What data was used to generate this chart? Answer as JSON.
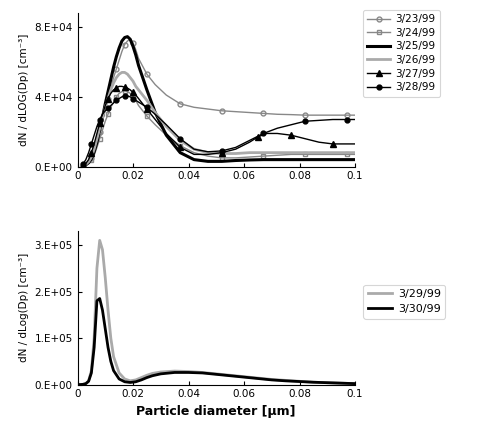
{
  "top_panel": {
    "ylabel": "dN / dLOG(Dp) [cm⁻³]",
    "ylim": [
      0,
      88000
    ],
    "yticks": [
      0,
      40000,
      80000
    ],
    "ytick_labels": [
      "0.E+00",
      "4.E+04",
      "8.E+04"
    ],
    "xlim": [
      0,
      0.1
    ],
    "xticks": [
      0,
      0.02,
      0.04,
      0.06,
      0.08,
      0.1
    ],
    "series": [
      {
        "label": "3/23/99",
        "color": "#888888",
        "lw": 1.0,
        "marker": "o",
        "marker_size": 3.5,
        "fillstyle": "none",
        "x": [
          0.002,
          0.003,
          0.004,
          0.005,
          0.006,
          0.007,
          0.008,
          0.009,
          0.01,
          0.011,
          0.012,
          0.013,
          0.014,
          0.015,
          0.016,
          0.017,
          0.018,
          0.019,
          0.02,
          0.021,
          0.022,
          0.025,
          0.028,
          0.032,
          0.037,
          0.042,
          0.047,
          0.052,
          0.057,
          0.062,
          0.067,
          0.072,
          0.077,
          0.082,
          0.087,
          0.092,
          0.097,
          0.1
        ],
        "y": [
          500,
          1200,
          2500,
          5000,
          9000,
          14000,
          20000,
          26000,
          33000,
          39000,
          45000,
          51000,
          56000,
          61000,
          66000,
          70000,
          72000,
          73000,
          71000,
          67000,
          62000,
          53000,
          47000,
          41000,
          36000,
          34000,
          33000,
          32000,
          31500,
          31000,
          30500,
          30000,
          29800,
          29500,
          29500,
          29500,
          29500,
          29500
        ]
      },
      {
        "label": "3/24/99",
        "color": "#888888",
        "lw": 1.0,
        "marker": "s",
        "marker_size": 3.5,
        "fillstyle": "none",
        "x": [
          0.002,
          0.003,
          0.004,
          0.005,
          0.006,
          0.007,
          0.008,
          0.009,
          0.01,
          0.011,
          0.012,
          0.013,
          0.014,
          0.015,
          0.016,
          0.017,
          0.018,
          0.019,
          0.02,
          0.021,
          0.022,
          0.025,
          0.028,
          0.032,
          0.037,
          0.042,
          0.047,
          0.052,
          0.057,
          0.062,
          0.067,
          0.072,
          0.077,
          0.082,
          0.087,
          0.092,
          0.097,
          0.1
        ],
        "y": [
          300,
          800,
          1800,
          3500,
          6500,
          11000,
          16000,
          21000,
          26000,
          30000,
          34000,
          37000,
          40000,
          42000,
          43000,
          43500,
          43000,
          42000,
          40000,
          38000,
          35000,
          29000,
          24000,
          18000,
          12000,
          8000,
          6000,
          5000,
          5000,
          5500,
          6000,
          6500,
          7000,
          7000,
          7000,
          7000,
          7000,
          7000
        ]
      },
      {
        "label": "3/25/99",
        "color": "#000000",
        "lw": 2.2,
        "marker": null,
        "marker_size": 0,
        "fillstyle": "full",
        "x": [
          0.002,
          0.003,
          0.004,
          0.005,
          0.006,
          0.007,
          0.008,
          0.009,
          0.01,
          0.011,
          0.012,
          0.013,
          0.014,
          0.015,
          0.016,
          0.017,
          0.018,
          0.019,
          0.02,
          0.021,
          0.022,
          0.025,
          0.028,
          0.032,
          0.037,
          0.042,
          0.047,
          0.052,
          0.057,
          0.062,
          0.067,
          0.072,
          0.077,
          0.082,
          0.087,
          0.092,
          0.097,
          0.1
        ],
        "y": [
          400,
          1000,
          2200,
          4500,
          8500,
          14000,
          21000,
          28000,
          36000,
          43000,
          50000,
          57000,
          63000,
          68000,
          72000,
          74000,
          74500,
          73000,
          69000,
          64000,
          58000,
          44000,
          31000,
          18000,
          8000,
          4000,
          3000,
          3000,
          3500,
          3800,
          4000,
          4000,
          4000,
          4000,
          4000,
          4000,
          4000,
          4000
        ]
      },
      {
        "label": "3/26/99",
        "color": "#aaaaaa",
        "lw": 2.0,
        "marker": null,
        "marker_size": 0,
        "fillstyle": "full",
        "x": [
          0.002,
          0.003,
          0.004,
          0.005,
          0.006,
          0.007,
          0.008,
          0.009,
          0.01,
          0.011,
          0.012,
          0.013,
          0.014,
          0.015,
          0.016,
          0.017,
          0.018,
          0.019,
          0.02,
          0.021,
          0.022,
          0.025,
          0.028,
          0.032,
          0.037,
          0.042,
          0.047,
          0.052,
          0.057,
          0.062,
          0.067,
          0.072,
          0.077,
          0.082,
          0.087,
          0.092,
          0.097,
          0.1
        ],
        "y": [
          500,
          1300,
          2800,
          5500,
          10000,
          16000,
          22000,
          28000,
          34000,
          39000,
          44000,
          48000,
          51000,
          53000,
          54000,
          54000,
          53000,
          51000,
          49000,
          46000,
          44000,
          38000,
          31000,
          23000,
          15000,
          10000,
          8000,
          7500,
          7500,
          8000,
          8000,
          8000,
          8000,
          8000,
          8000,
          8000,
          8000,
          8000
        ]
      },
      {
        "label": "3/27/99",
        "color": "#000000",
        "lw": 1.0,
        "marker": "^",
        "marker_size": 4,
        "fillstyle": "full",
        "x": [
          0.002,
          0.003,
          0.004,
          0.005,
          0.006,
          0.007,
          0.008,
          0.009,
          0.01,
          0.011,
          0.012,
          0.013,
          0.014,
          0.015,
          0.016,
          0.017,
          0.018,
          0.019,
          0.02,
          0.021,
          0.022,
          0.025,
          0.028,
          0.032,
          0.037,
          0.042,
          0.047,
          0.052,
          0.057,
          0.062,
          0.065,
          0.068,
          0.072,
          0.077,
          0.082,
          0.087,
          0.092,
          0.097,
          0.1
        ],
        "y": [
          700,
          1800,
          4000,
          8000,
          13000,
          19000,
          25000,
          30000,
          35000,
          39000,
          42000,
          44000,
          45000,
          46000,
          46000,
          45500,
          45000,
          44000,
          42500,
          41000,
          39000,
          33000,
          27000,
          19000,
          11000,
          7000,
          7000,
          8000,
          10000,
          14000,
          17000,
          19000,
          19000,
          18000,
          16000,
          14000,
          13000,
          13000,
          13000
        ]
      },
      {
        "label": "3/28/99",
        "color": "#000000",
        "lw": 1.0,
        "marker": "o",
        "marker_size": 3.5,
        "fillstyle": "full",
        "x": [
          0.002,
          0.003,
          0.004,
          0.005,
          0.006,
          0.007,
          0.008,
          0.009,
          0.01,
          0.011,
          0.012,
          0.013,
          0.014,
          0.015,
          0.016,
          0.017,
          0.018,
          0.019,
          0.02,
          0.021,
          0.022,
          0.025,
          0.028,
          0.032,
          0.037,
          0.042,
          0.047,
          0.052,
          0.057,
          0.062,
          0.067,
          0.072,
          0.077,
          0.082,
          0.087,
          0.092,
          0.097,
          0.1
        ],
        "y": [
          1500,
          4000,
          8000,
          13000,
          18000,
          23000,
          27000,
          30000,
          32000,
          33500,
          35000,
          36500,
          38000,
          39000,
          40000,
          40500,
          40500,
          40000,
          39000,
          38000,
          37000,
          34000,
          30000,
          24000,
          16000,
          10000,
          8500,
          9000,
          11000,
          15000,
          19000,
          22000,
          24000,
          26000,
          26500,
          27000,
          27000,
          27000
        ]
      }
    ]
  },
  "bottom_panel": {
    "ylabel": "dN / dLog(Dp) [cm⁻³]",
    "ylim": [
      0,
      330000
    ],
    "yticks": [
      0,
      100000,
      200000,
      300000
    ],
    "ytick_labels": [
      "0.E+00",
      "1.E+05",
      "2.E+05",
      "3.E+05"
    ],
    "xlim": [
      0,
      0.1
    ],
    "xticks": [
      0,
      0.02,
      0.04,
      0.06,
      0.08,
      0.1
    ],
    "xlabel": "Particle diameter [μm]",
    "series": [
      {
        "label": "3/29/99",
        "color": "#aaaaaa",
        "lw": 2.0,
        "marker": null,
        "x": [
          0.0,
          0.001,
          0.002,
          0.003,
          0.004,
          0.005,
          0.006,
          0.007,
          0.008,
          0.009,
          0.01,
          0.011,
          0.012,
          0.013,
          0.015,
          0.017,
          0.019,
          0.021,
          0.023,
          0.025,
          0.027,
          0.03,
          0.035,
          0.04,
          0.045,
          0.05,
          0.055,
          0.06,
          0.065,
          0.07,
          0.075,
          0.08,
          0.085,
          0.09,
          0.095,
          0.1
        ],
        "y": [
          0,
          0,
          500,
          2000,
          8000,
          30000,
          100000,
          250000,
          310000,
          290000,
          230000,
          160000,
          100000,
          60000,
          25000,
          12000,
          8000,
          10000,
          15000,
          20000,
          24000,
          27000,
          29000,
          28000,
          26000,
          23000,
          20000,
          17000,
          14000,
          11000,
          9000,
          7000,
          5000,
          4000,
          3000,
          2000
        ]
      },
      {
        "label": "3/30/99",
        "color": "#000000",
        "lw": 2.0,
        "marker": null,
        "x": [
          0.0,
          0.001,
          0.002,
          0.003,
          0.004,
          0.005,
          0.006,
          0.007,
          0.008,
          0.009,
          0.01,
          0.011,
          0.012,
          0.013,
          0.015,
          0.017,
          0.019,
          0.021,
          0.023,
          0.025,
          0.027,
          0.03,
          0.035,
          0.04,
          0.045,
          0.05,
          0.055,
          0.06,
          0.065,
          0.07,
          0.075,
          0.08,
          0.085,
          0.09,
          0.095,
          0.1
        ],
        "y": [
          0,
          0,
          500,
          2000,
          7000,
          25000,
          80000,
          180000,
          185000,
          160000,
          120000,
          80000,
          50000,
          30000,
          12000,
          6000,
          4500,
          6000,
          10000,
          15000,
          19000,
          23000,
          26000,
          26000,
          25000,
          22000,
          19000,
          16000,
          13000,
          10000,
          8000,
          6500,
          5000,
          4000,
          3000,
          2000
        ]
      }
    ]
  }
}
